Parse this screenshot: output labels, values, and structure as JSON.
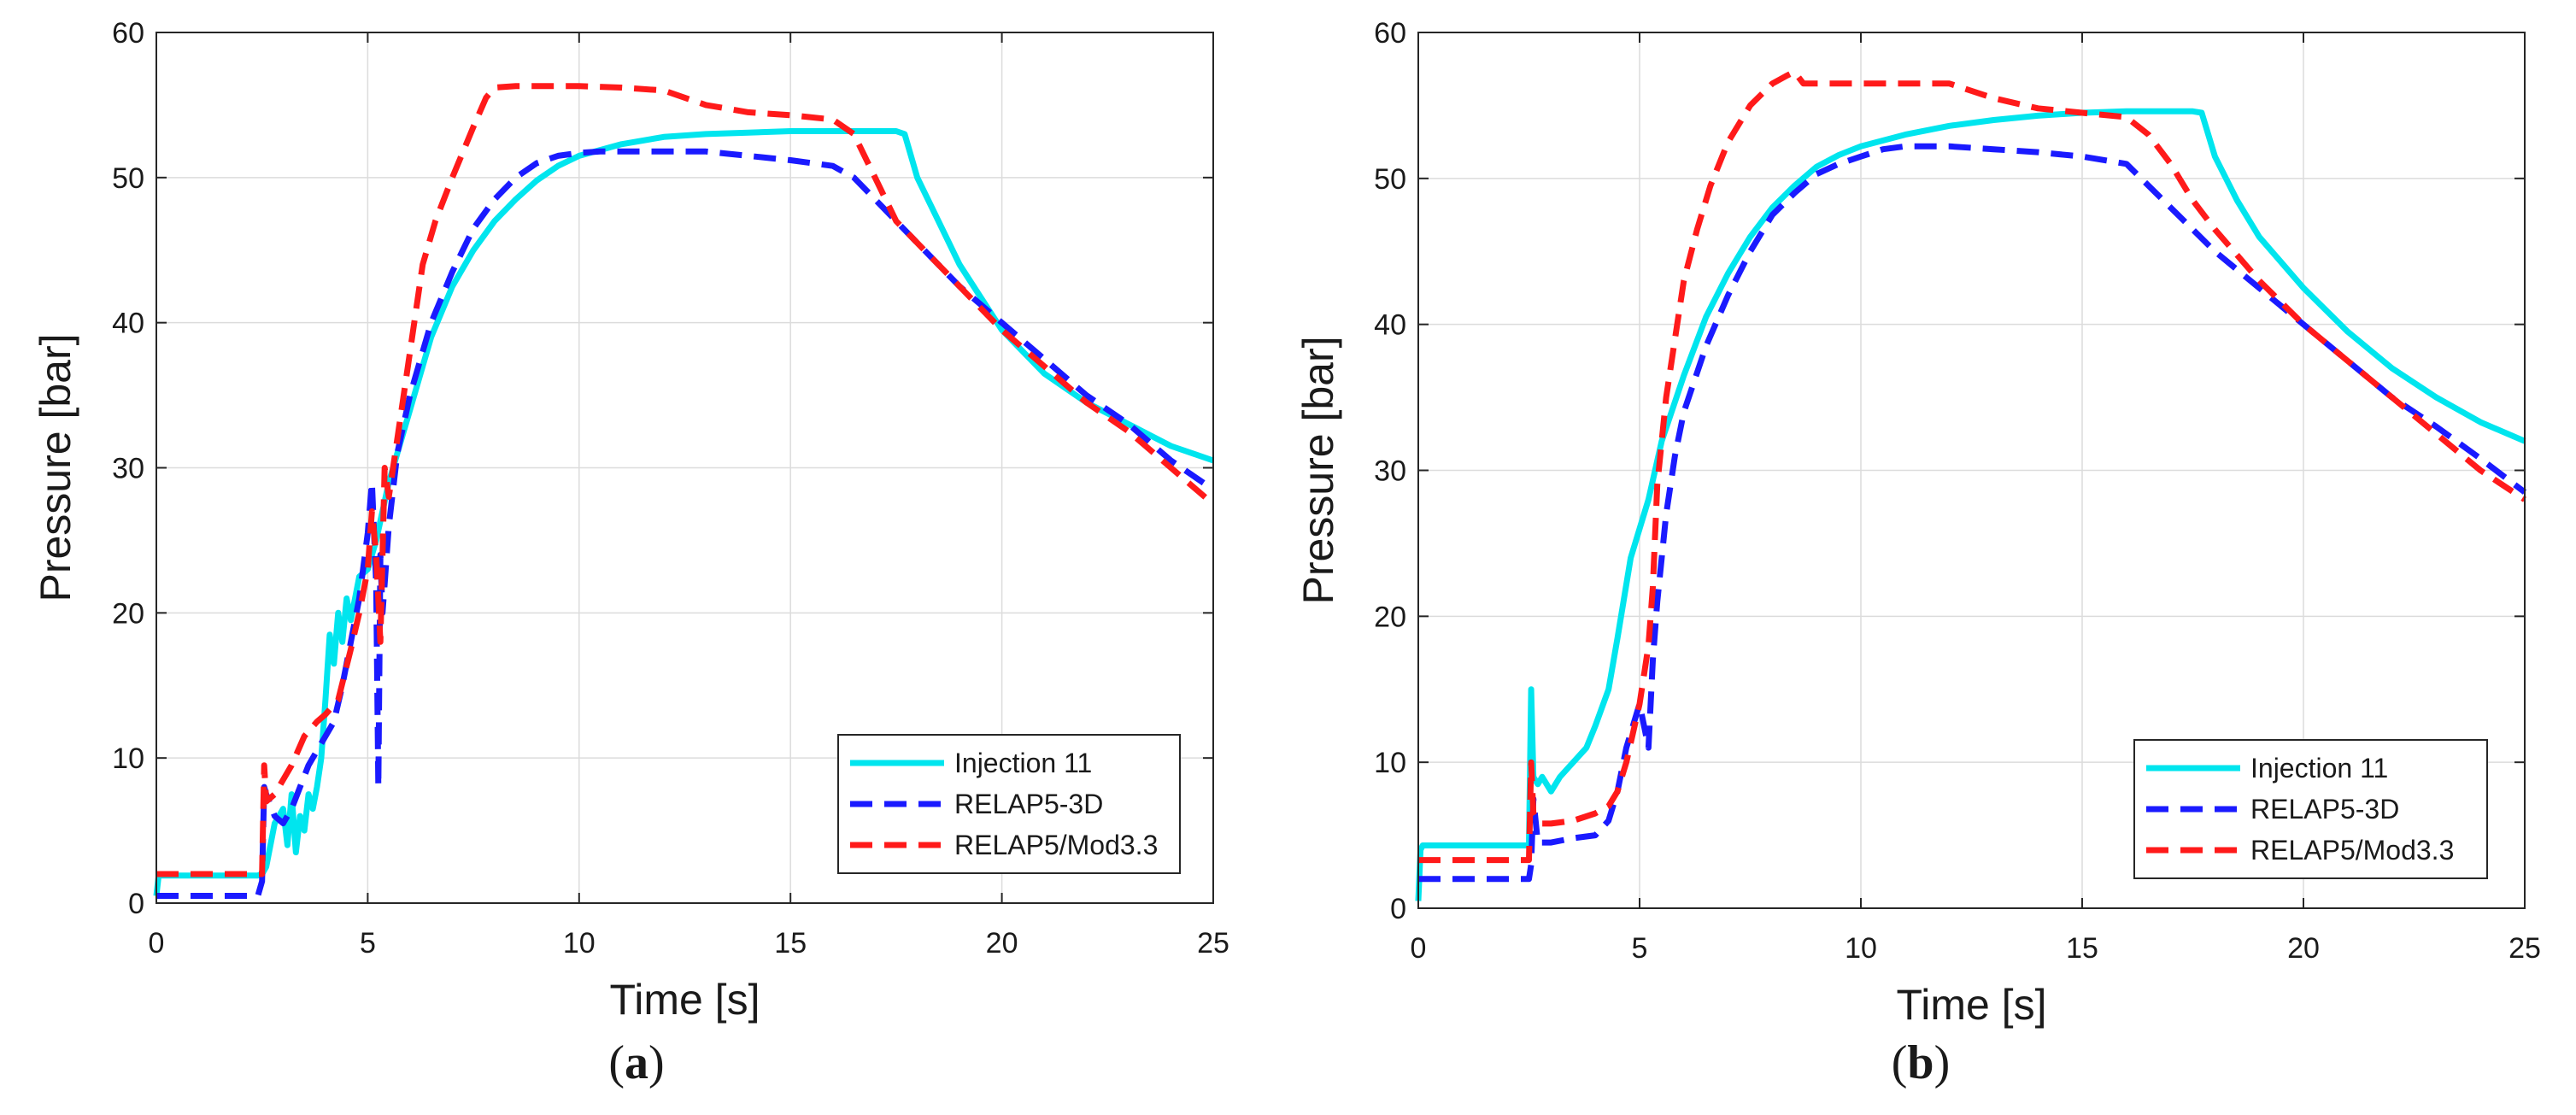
{
  "chart_data": [
    {
      "type": "line",
      "panel_label": "a",
      "xlabel": "Time [s]",
      "ylabel": "Pressure [bar]",
      "xlim": [
        0,
        25
      ],
      "ylim": [
        0,
        60
      ],
      "xticks": [
        0,
        5,
        10,
        15,
        20,
        25
      ],
      "yticks": [
        0,
        10,
        20,
        30,
        40,
        50,
        60
      ],
      "grid": true,
      "legend_position": "bottom-right",
      "series": [
        {
          "name": "Injection 11",
          "color": "#00e5ee",
          "style": "solid",
          "x": [
            0,
            0.05,
            0.1,
            2.4,
            2.5,
            2.6,
            2.8,
            3.0,
            3.1,
            3.2,
            3.3,
            3.4,
            3.5,
            3.6,
            3.7,
            3.8,
            3.9,
            4.0,
            4.1,
            4.2,
            4.3,
            4.4,
            4.5,
            4.6,
            4.8,
            5.0,
            5.2,
            5.5,
            6.0,
            6.5,
            7.0,
            7.5,
            8.0,
            8.5,
            9.0,
            9.5,
            10.0,
            11.0,
            12.0,
            13.0,
            14.0,
            15.0,
            16.0,
            17.0,
            17.5,
            17.7,
            18.0,
            18.5,
            19.0,
            20.0,
            21.0,
            22.0,
            23.0,
            24.0,
            25.0
          ],
          "values": [
            0.5,
            1.8,
            1.9,
            1.9,
            2.0,
            2.5,
            5.5,
            6.5,
            4.0,
            7.5,
            3.5,
            6.0,
            5.0,
            7.5,
            6.5,
            8.0,
            10.0,
            14.0,
            18.5,
            16.5,
            20.0,
            18.0,
            21.0,
            19.5,
            22.5,
            23.0,
            25.0,
            29.0,
            34.0,
            39.0,
            42.5,
            45.0,
            47.0,
            48.5,
            49.8,
            50.8,
            51.5,
            52.3,
            52.8,
            53.0,
            53.1,
            53.2,
            53.2,
            53.2,
            53.2,
            53.0,
            50.0,
            47.0,
            44.0,
            39.5,
            36.5,
            34.5,
            33.0,
            31.5,
            30.5
          ]
        },
        {
          "name": "RELAP5-3D",
          "color": "#1a1aff",
          "style": "dashed",
          "x": [
            0,
            2.4,
            2.5,
            2.55,
            2.6,
            2.8,
            3.0,
            3.2,
            3.4,
            3.6,
            3.8,
            4.0,
            4.2,
            4.4,
            4.6,
            4.8,
            5.0,
            5.1,
            5.2,
            5.25,
            5.3,
            5.35,
            5.4,
            5.5,
            5.7,
            6.0,
            6.5,
            7.0,
            7.5,
            8.0,
            8.5,
            9.0,
            9.5,
            10.0,
            10.5,
            11.0,
            12.0,
            13.0,
            14.0,
            15.0,
            16.0,
            16.5,
            17.0,
            17.5,
            18.0,
            19.0,
            20.0,
            21.0,
            22.0,
            23.0,
            24.0,
            25.0
          ],
          "values": [
            0.5,
            0.5,
            1.5,
            8.0,
            7.5,
            6.0,
            5.5,
            6.5,
            8.0,
            9.5,
            10.5,
            11.5,
            12.5,
            15.0,
            18.0,
            21.0,
            25.5,
            29.0,
            22.0,
            8.0,
            24.0,
            20.0,
            22.0,
            26.0,
            31.0,
            35.0,
            40.0,
            43.5,
            46.5,
            48.5,
            50.0,
            51.0,
            51.5,
            51.7,
            51.8,
            51.8,
            51.8,
            51.8,
            51.5,
            51.2,
            50.8,
            50.0,
            48.5,
            47.0,
            45.5,
            42.5,
            40.0,
            37.5,
            35.0,
            33.0,
            30.5,
            28.5
          ]
        },
        {
          "name": "RELAP5/Mod3.3",
          "color": "#ff1a1a",
          "style": "dashed",
          "x": [
            0,
            2.4,
            2.5,
            2.55,
            2.6,
            2.8,
            3.0,
            3.2,
            3.5,
            3.8,
            4.0,
            4.3,
            4.6,
            4.8,
            5.0,
            5.1,
            5.2,
            5.3,
            5.4,
            5.5,
            5.8,
            6.0,
            6.3,
            6.6,
            7.0,
            7.5,
            7.8,
            8.0,
            8.5,
            9.0,
            10.0,
            11.0,
            12.0,
            13.0,
            14.0,
            15.0,
            16.0,
            16.5,
            17.0,
            17.5,
            18.0,
            19.0,
            20.0,
            21.0,
            22.0,
            23.0,
            24.0,
            25.0
          ],
          "values": [
            2.0,
            2.0,
            2.0,
            9.5,
            7.0,
            7.5,
            8.5,
            9.5,
            11.5,
            12.5,
            13.0,
            14.0,
            17.5,
            20.0,
            23.0,
            27.0,
            24.0,
            18.0,
            30.0,
            28.0,
            34.0,
            38.0,
            44.0,
            47.0,
            50.0,
            53.5,
            55.5,
            56.2,
            56.3,
            56.3,
            56.3,
            56.2,
            56.0,
            55.0,
            54.5,
            54.3,
            54.0,
            53.0,
            50.0,
            47.0,
            45.5,
            42.5,
            39.5,
            37.0,
            34.5,
            32.5,
            30.0,
            27.5
          ]
        }
      ]
    },
    {
      "type": "line",
      "panel_label": "b",
      "xlabel": "Time [s]",
      "ylabel": "Pressure [bar]",
      "xlim": [
        0,
        25
      ],
      "ylim": [
        0,
        60
      ],
      "xticks": [
        0,
        5,
        10,
        15,
        20,
        25
      ],
      "yticks": [
        0,
        10,
        20,
        30,
        40,
        50,
        60
      ],
      "grid": true,
      "legend_position": "bottom-right",
      "series": [
        {
          "name": "Injection 11",
          "color": "#00e5ee",
          "style": "solid",
          "x": [
            0,
            0.05,
            0.1,
            2.5,
            2.55,
            2.6,
            2.7,
            2.8,
            3.0,
            3.2,
            3.5,
            3.8,
            4.0,
            4.3,
            4.5,
            4.8,
            5.0,
            5.2,
            5.5,
            6.0,
            6.5,
            7.0,
            7.5,
            8.0,
            8.5,
            9.0,
            9.5,
            10.0,
            11.0,
            12.0,
            13.0,
            14.0,
            15.0,
            16.0,
            17.0,
            17.5,
            17.7,
            18.0,
            18.5,
            19.0,
            20.0,
            21.0,
            22.0,
            23.0,
            24.0,
            25.0
          ],
          "values": [
            0.5,
            4.0,
            4.3,
            4.3,
            15.0,
            9.0,
            8.5,
            9.0,
            8.0,
            9.0,
            10.0,
            11.0,
            12.5,
            15.0,
            18.5,
            24.0,
            26.0,
            28.0,
            32.0,
            36.5,
            40.5,
            43.5,
            46.0,
            48.0,
            49.5,
            50.8,
            51.6,
            52.2,
            53.0,
            53.6,
            54.0,
            54.3,
            54.5,
            54.6,
            54.6,
            54.6,
            54.5,
            51.5,
            48.5,
            46.0,
            42.5,
            39.5,
            37.0,
            35.0,
            33.3,
            32.0
          ]
        },
        {
          "name": "RELAP5-3D",
          "color": "#1a1aff",
          "style": "dashed",
          "x": [
            0,
            2.5,
            2.55,
            2.6,
            2.7,
            3.0,
            3.5,
            4.0,
            4.3,
            4.5,
            4.7,
            5.0,
            5.2,
            5.3,
            5.4,
            5.5,
            5.6,
            5.8,
            6.0,
            6.5,
            7.0,
            7.5,
            8.0,
            8.5,
            9.0,
            9.5,
            10.0,
            10.5,
            11.0,
            12.0,
            13.0,
            14.0,
            15.0,
            16.0,
            16.5,
            17.0,
            17.5,
            18.0,
            19.0,
            20.0,
            21.0,
            22.0,
            23.0,
            24.0,
            25.0
          ],
          "values": [
            2.0,
            2.0,
            3.0,
            7.5,
            4.5,
            4.5,
            4.8,
            5.0,
            6.0,
            8.0,
            11.0,
            14.0,
            11.0,
            17.0,
            21.0,
            24.0,
            27.0,
            31.0,
            34.0,
            38.5,
            42.0,
            45.0,
            47.5,
            49.0,
            50.3,
            51.0,
            51.5,
            52.0,
            52.2,
            52.2,
            52.0,
            51.8,
            51.5,
            51.0,
            49.5,
            48.0,
            46.5,
            45.0,
            42.5,
            40.0,
            37.5,
            35.0,
            33.0,
            30.8,
            28.5
          ]
        },
        {
          "name": "RELAP5/Mod3.3",
          "color": "#ff1a1a",
          "style": "dashed",
          "x": [
            0,
            2.5,
            2.55,
            2.6,
            2.7,
            2.8,
            3.0,
            3.5,
            4.0,
            4.3,
            4.5,
            4.7,
            5.0,
            5.2,
            5.3,
            5.4,
            5.5,
            5.6,
            5.8,
            6.0,
            6.3,
            6.6,
            7.0,
            7.5,
            8.0,
            8.3,
            8.5,
            8.7,
            9.0,
            10.0,
            11.0,
            12.0,
            13.0,
            14.0,
            15.0,
            16.0,
            16.5,
            17.0,
            17.5,
            18.0,
            19.0,
            20.0,
            21.0,
            22.0,
            23.0,
            24.0,
            25.0
          ],
          "values": [
            3.3,
            3.3,
            10.0,
            6.5,
            6.0,
            5.8,
            5.8,
            6.0,
            6.5,
            7.0,
            8.0,
            10.0,
            14.0,
            18.0,
            22.0,
            29.0,
            32.0,
            35.0,
            39.0,
            43.0,
            46.5,
            49.5,
            52.5,
            55.0,
            56.5,
            57.0,
            57.3,
            56.5,
            56.5,
            56.5,
            56.5,
            56.5,
            55.5,
            54.8,
            54.5,
            54.2,
            53.0,
            51.0,
            48.5,
            46.5,
            43.0,
            40.0,
            37.5,
            35.0,
            32.5,
            30.0,
            28.0
          ]
        }
      ]
    }
  ]
}
